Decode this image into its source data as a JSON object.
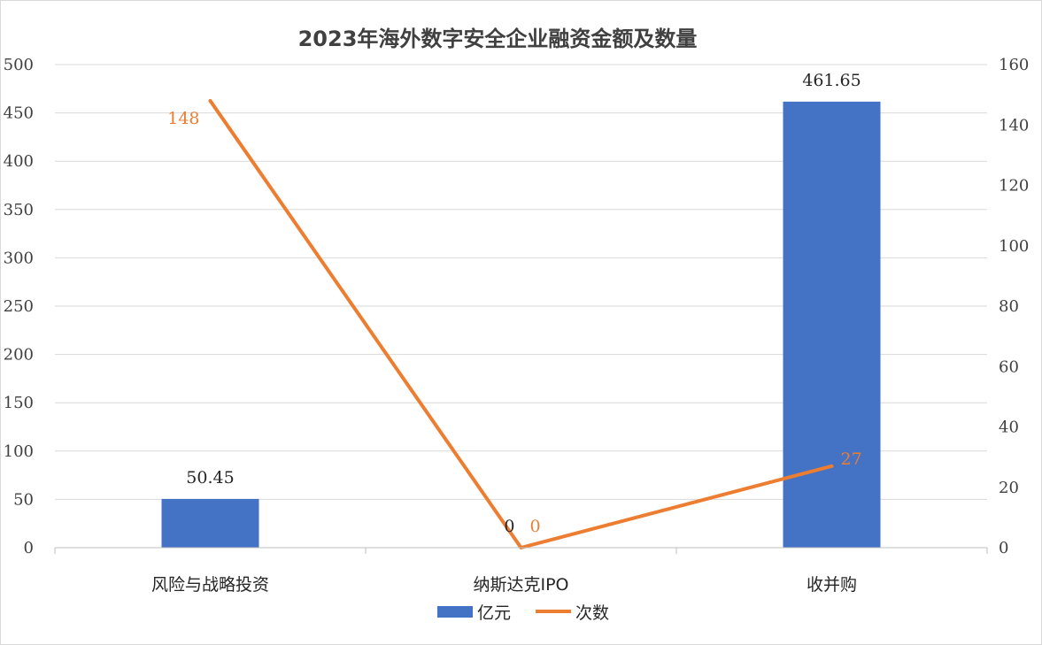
{
  "chart_data": {
    "type": "bar",
    "title": "2023年海外数字安全企业融资金额及数量",
    "categories": [
      "风险与战略投资",
      "纳斯达克IPO",
      "收并购"
    ],
    "ylim_left": [
      0,
      500
    ],
    "yticks_left": [
      0,
      50,
      100,
      150,
      200,
      250,
      300,
      350,
      400,
      450,
      500
    ],
    "ylim_right": [
      0,
      160
    ],
    "yticks_right": [
      0,
      20,
      40,
      60,
      80,
      100,
      120,
      140,
      160
    ],
    "grid": true,
    "legend_placement": "bottom",
    "series": [
      {
        "name": "亿元",
        "type": "bar",
        "axis": "left",
        "color": "#4472c4",
        "values": [
          50.45,
          0,
          461.65
        ],
        "labels": [
          "50.45",
          "0",
          "461.65"
        ]
      },
      {
        "name": "次数",
        "type": "line",
        "axis": "right",
        "color": "#ed7d31",
        "values": [
          148,
          0,
          27
        ],
        "labels": [
          "148",
          "0",
          "27"
        ]
      }
    ]
  }
}
